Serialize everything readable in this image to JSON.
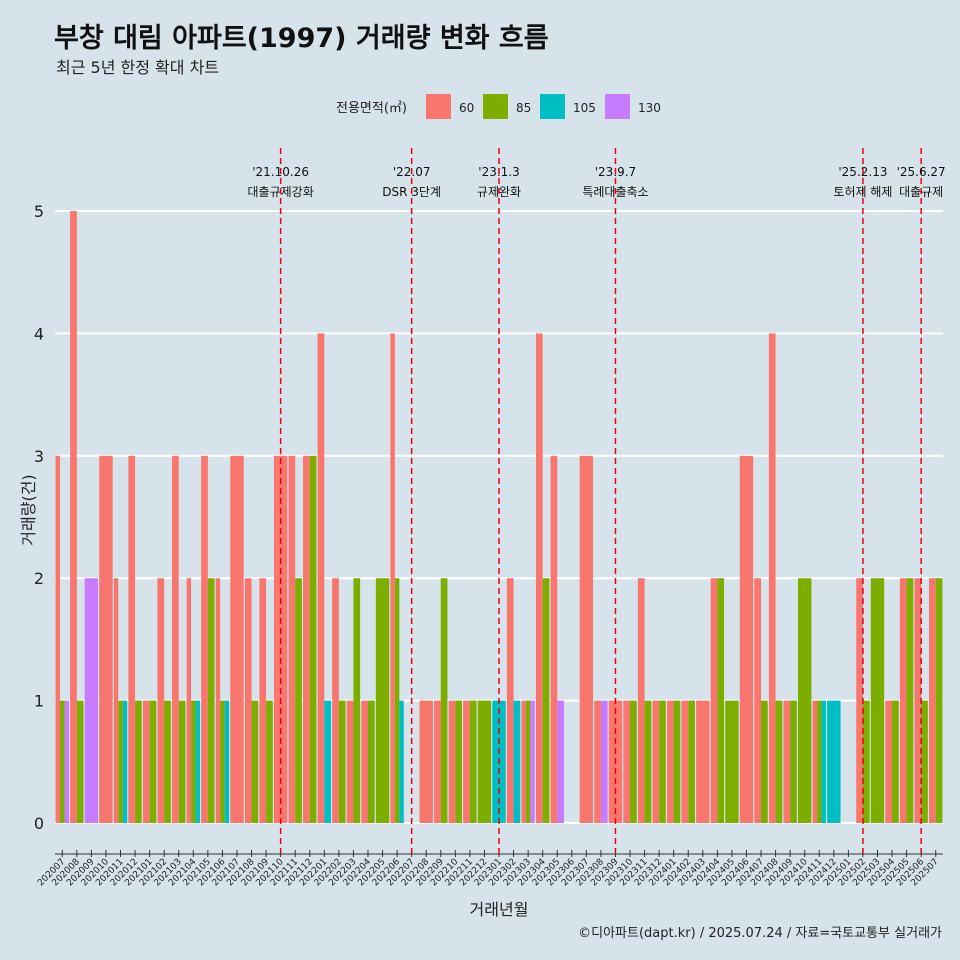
{
  "title": "부창 대림 아파트(1997) 거래량 변화 흐름",
  "subtitle": "최근 5년 한정 확대 차트",
  "caption": "©디아파트(dapt.kr) / 2025.07.24 / 자료=국토교통부 실거래가",
  "colors": {
    "60": "#f8766d",
    "85": "#7cae00",
    "105": "#00bfc4",
    "130": "#c77cff",
    "vline": "#e8000b",
    "grid": "#ffffff",
    "background": "#d7e3ea"
  },
  "chart_data": {
    "type": "bar",
    "xlabel": "거래년월",
    "ylabel": "거래량(건)",
    "ylim": [
      0,
      5
    ],
    "yticks": [
      0,
      1,
      2,
      3,
      4,
      5
    ],
    "grid": true,
    "legend": {
      "title": "전용면적(㎡)",
      "position": "top",
      "items": [
        "60",
        "85",
        "105",
        "130"
      ]
    },
    "categories": [
      "202007",
      "202008",
      "202009",
      "202010",
      "202011",
      "202012",
      "202101",
      "202102",
      "202103",
      "202104",
      "202105",
      "202106",
      "202107",
      "202108",
      "202109",
      "202110",
      "202111",
      "202112",
      "202201",
      "202202",
      "202203",
      "202204",
      "202205",
      "202206",
      "202207",
      "202208",
      "202209",
      "202210",
      "202211",
      "202212",
      "202301",
      "202302",
      "202303",
      "202304",
      "202305",
      "202306",
      "202307",
      "202308",
      "202309",
      "202310",
      "202311",
      "202312",
      "202401",
      "202402",
      "202403",
      "202404",
      "202405",
      "202406",
      "202407",
      "202408",
      "202409",
      "202410",
      "202411",
      "202412",
      "202501",
      "202502",
      "202503",
      "202504",
      "202505",
      "202506",
      "202507"
    ],
    "series": [
      {
        "name": "60",
        "values": [
          3,
          5,
          0,
          3,
          2,
          3,
          1,
          2,
          3,
          2,
          3,
          2,
          3,
          2,
          2,
          3,
          3,
          3,
          4,
          2,
          1,
          1,
          0,
          4,
          0,
          1,
          1,
          1,
          1,
          0,
          0,
          2,
          1,
          4,
          3,
          0,
          3,
          1,
          1,
          1,
          2,
          1,
          1,
          1,
          1,
          2,
          0,
          3,
          2,
          4,
          1,
          0,
          1,
          0,
          0,
          2,
          0,
          1,
          2,
          2,
          2
        ]
      },
      {
        "name": "85",
        "values": [
          1,
          1,
          0,
          0,
          1,
          1,
          1,
          1,
          1,
          1,
          2,
          1,
          0,
          1,
          1,
          0,
          2,
          3,
          0,
          1,
          2,
          1,
          2,
          2,
          0,
          0,
          2,
          1,
          1,
          1,
          0,
          0,
          1,
          2,
          0,
          0,
          0,
          0,
          0,
          1,
          1,
          1,
          1,
          1,
          0,
          2,
          1,
          0,
          1,
          1,
          1,
          2,
          1,
          0,
          0,
          1,
          2,
          1,
          2,
          1,
          2
        ]
      },
      {
        "name": "105",
        "values": [
          0,
          0,
          0,
          0,
          1,
          0,
          0,
          0,
          0,
          1,
          0,
          1,
          0,
          0,
          0,
          0,
          0,
          0,
          1,
          0,
          0,
          0,
          0,
          1,
          0,
          0,
          0,
          0,
          0,
          0,
          1,
          1,
          0,
          0,
          0,
          0,
          0,
          0,
          0,
          0,
          0,
          0,
          0,
          0,
          0,
          0,
          0,
          0,
          0,
          0,
          0,
          0,
          1,
          1,
          0,
          0,
          0,
          0,
          0,
          0,
          0
        ]
      },
      {
        "name": "130",
        "values": [
          1,
          0,
          2,
          0,
          0,
          0,
          0,
          0,
          0,
          0,
          0,
          0,
          0,
          0,
          0,
          0,
          0,
          0,
          0,
          0,
          0,
          0,
          0,
          0,
          0,
          0,
          0,
          0,
          0,
          0,
          0,
          0,
          1,
          0,
          1,
          0,
          0,
          1,
          0,
          0,
          0,
          0,
          0,
          0,
          0,
          0,
          0,
          0,
          0,
          0,
          0,
          0,
          0,
          0,
          0,
          0,
          0,
          0,
          0,
          0,
          0
        ]
      }
    ],
    "annotations": [
      {
        "x": "202110",
        "date": "'21.10.26",
        "label": "대출규제강화"
      },
      {
        "x": "202207",
        "date": "'22.07",
        "label": "DSR 3단계"
      },
      {
        "x": "202301",
        "date": "'23.1.3",
        "label": "규제완화"
      },
      {
        "x": "202309",
        "date": "'23.9.7",
        "label": "특례대출축소"
      },
      {
        "x": "202502",
        "date": "'25.2.13",
        "label": "토허제 해제"
      },
      {
        "x": "202506",
        "date": "'25.6.27",
        "label": "대출규제"
      }
    ]
  }
}
